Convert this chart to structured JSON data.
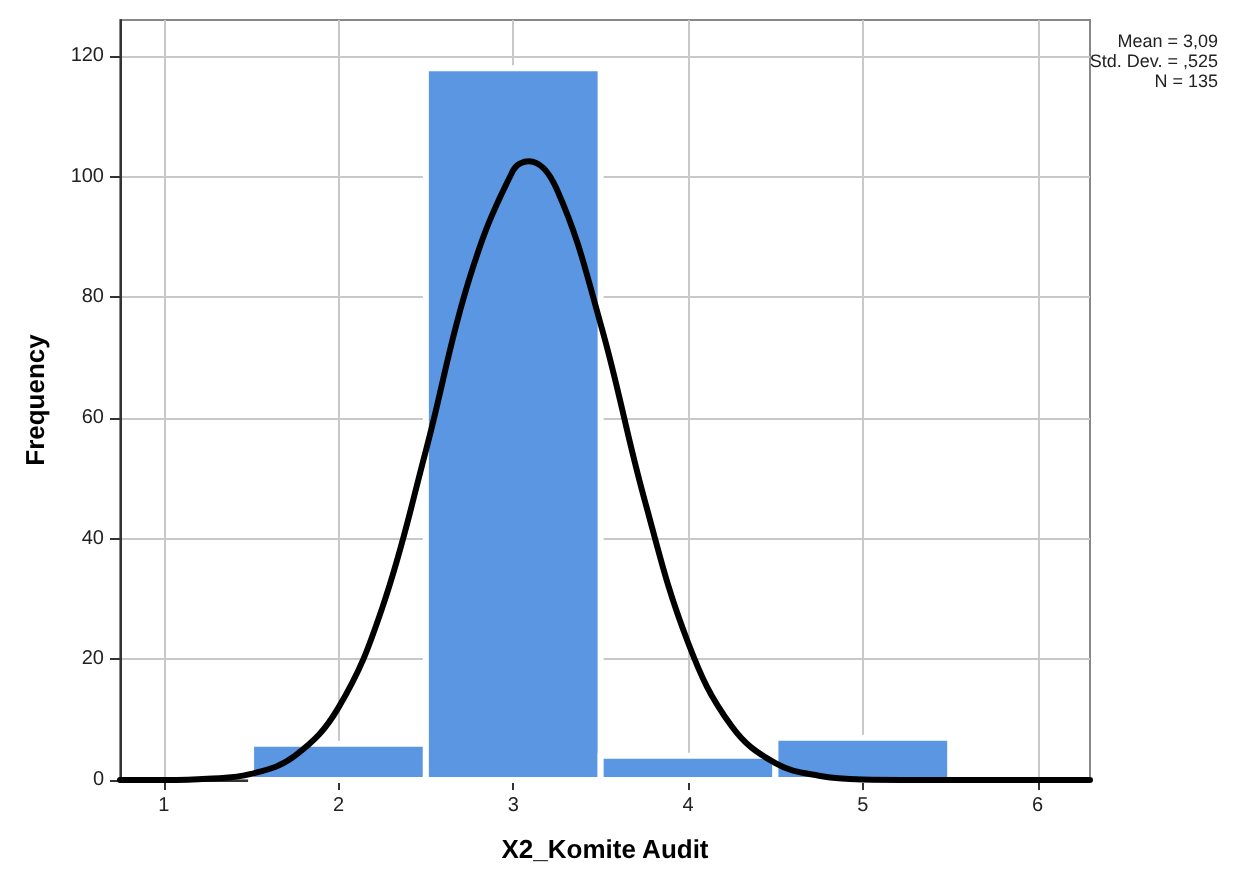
{
  "chart_data": {
    "type": "histogram",
    "xlabel": "X2_Komite Audit",
    "ylabel": "Frequency",
    "bins": [
      1.5,
      2.5,
      3.5,
      4.5,
      5.5
    ],
    "values": [
      6,
      118,
      4,
      7
    ],
    "color": "#5b96e2",
    "series": [
      {
        "type": "line",
        "color": "#000000",
        "x": [
          0.75,
          1.0,
          1.25,
          1.5,
          1.75,
          2.0,
          2.25,
          2.5,
          2.75,
          3.0,
          3.09,
          3.25,
          3.5,
          3.75,
          4.0,
          4.25,
          4.5,
          4.75,
          5.0,
          5.5,
          6.0,
          6.3
        ],
        "values": [
          0,
          0,
          0.2,
          1,
          4,
          12,
          28.5,
          54.6,
          83.2,
          101.1,
          102.6,
          97.9,
          75.6,
          46.6,
          22.8,
          8.9,
          2.8,
          0.7,
          0.1,
          0,
          0,
          0
        ]
      }
    ],
    "xlim": [
      0.75,
      6.3
    ],
    "xticks": [
      1,
      2,
      3,
      4,
      5,
      6
    ],
    "ylim": [
      0,
      126
    ],
    "yticks": [
      0,
      20,
      40,
      60,
      80,
      100,
      120
    ],
    "grid": true,
    "marker": "none",
    "line_style": "solid",
    "annotations": [
      "Mean = 3,09",
      "Std. Dev. = ,525",
      "N = 135"
    ]
  }
}
